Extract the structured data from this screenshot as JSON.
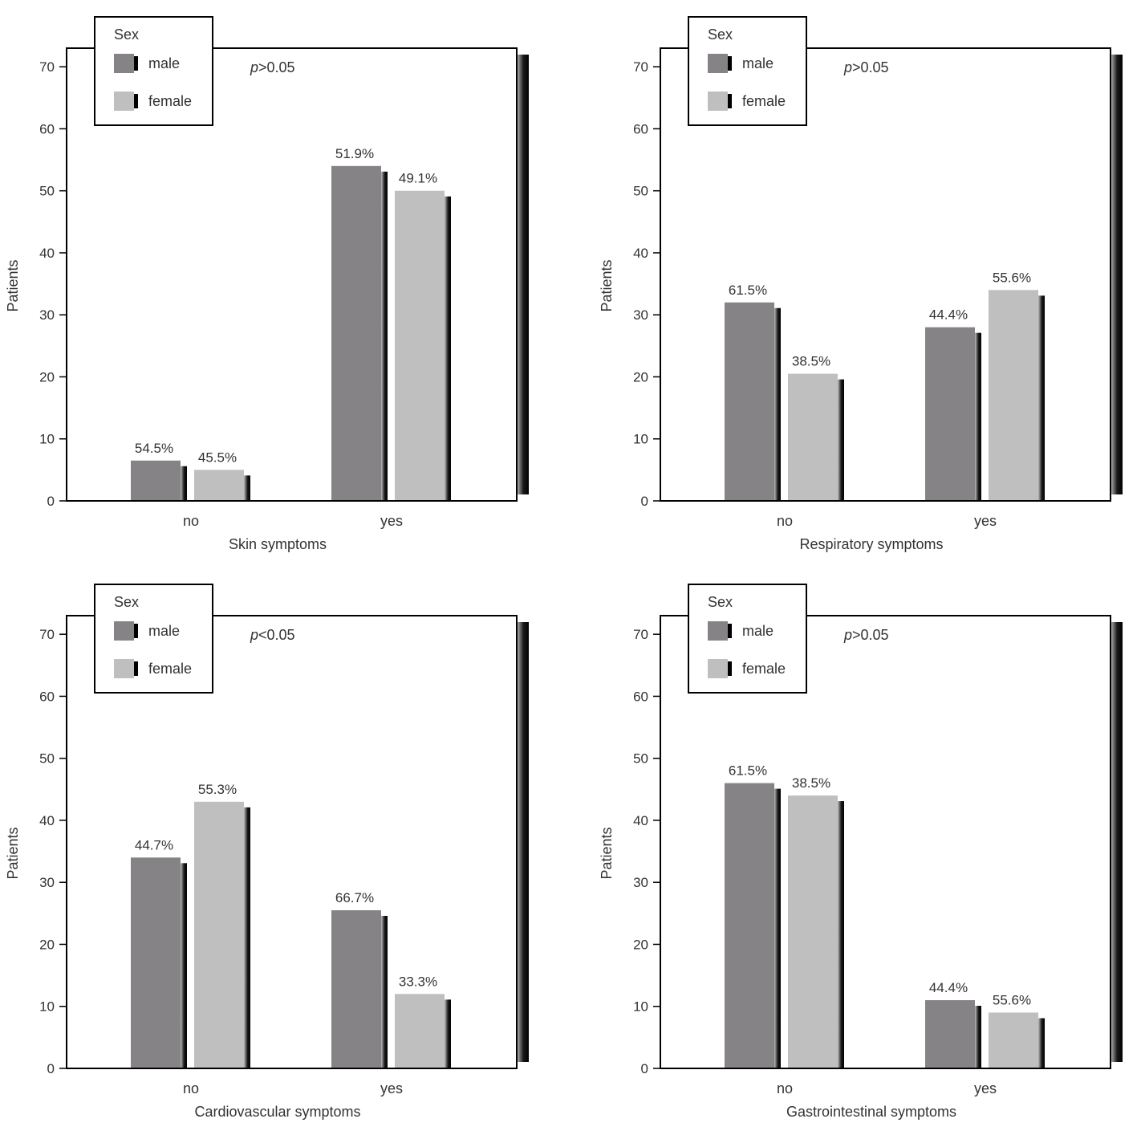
{
  "chart_data": [
    {
      "type": "bar",
      "categories": [
        "no",
        "yes"
      ],
      "series": [
        {
          "name": "male",
          "values": [
            6.5,
            54
          ],
          "labels": [
            "54.5%",
            "51.9%"
          ]
        },
        {
          "name": "female",
          "values": [
            5,
            50
          ],
          "labels": [
            "45.5%",
            "49.1%"
          ]
        }
      ],
      "xlabel": "Skin symptoms",
      "ylabel": "Patients",
      "yticks": [
        "0",
        "10",
        "20",
        "30",
        "40",
        "50",
        "60",
        "70"
      ],
      "ylim": [
        0,
        73
      ],
      "annotation": {
        "p": "p",
        "rest": ">0.05"
      },
      "legend": {
        "title": "Sex",
        "position": "top-left",
        "entries": [
          "male",
          "female"
        ]
      }
    },
    {
      "type": "bar",
      "categories": [
        "no",
        "yes"
      ],
      "series": [
        {
          "name": "male",
          "values": [
            32,
            28
          ],
          "labels": [
            "61.5%",
            "44.4%"
          ]
        },
        {
          "name": "female",
          "values": [
            20.5,
            34
          ],
          "labels": [
            "38.5%",
            "55.6%"
          ]
        }
      ],
      "xlabel": "Respiratory symptoms",
      "ylabel": "Patients",
      "yticks": [
        "0",
        "10",
        "20",
        "30",
        "40",
        "50",
        "60",
        "70"
      ],
      "ylim": [
        0,
        73
      ],
      "annotation": {
        "p": "p",
        "rest": ">0.05"
      },
      "legend": {
        "title": "Sex",
        "position": "top-left",
        "entries": [
          "male",
          "female"
        ]
      }
    },
    {
      "type": "bar",
      "categories": [
        "no",
        "yes"
      ],
      "series": [
        {
          "name": "male",
          "values": [
            34,
            25.5
          ],
          "labels": [
            "44.7%",
            "66.7%"
          ]
        },
        {
          "name": "female",
          "values": [
            43,
            12
          ],
          "labels": [
            "55.3%",
            "33.3%"
          ]
        }
      ],
      "xlabel": "Cardiovascular symptoms",
      "ylabel": "Patients",
      "yticks": [
        "0",
        "10",
        "20",
        "30",
        "40",
        "50",
        "60",
        "70"
      ],
      "ylim": [
        0,
        73
      ],
      "annotation": {
        "p": "p",
        "rest": "<0.05"
      },
      "legend": {
        "title": "Sex",
        "position": "top-left",
        "entries": [
          "male",
          "female"
        ]
      }
    },
    {
      "type": "bar",
      "categories": [
        "no",
        "yes"
      ],
      "series": [
        {
          "name": "male",
          "values": [
            46,
            11
          ],
          "labels": [
            "61.5%",
            "44.4%"
          ]
        },
        {
          "name": "female",
          "values": [
            44,
            9
          ],
          "labels": [
            "38.5%",
            "55.6%"
          ]
        }
      ],
      "xlabel": "Gastrointestinal symptoms",
      "ylabel": "Patients",
      "yticks": [
        "0",
        "10",
        "20",
        "30",
        "40",
        "50",
        "60",
        "70"
      ],
      "ylim": [
        0,
        73
      ],
      "annotation": {
        "p": "p",
        "rest": ">0.05"
      },
      "legend": {
        "title": "Sex",
        "position": "top-left",
        "entries": [
          "male",
          "female"
        ]
      }
    }
  ],
  "colors": {
    "male": "#858386",
    "female": "#bfbfbf",
    "shadow": "#000000",
    "frame": "#000000"
  }
}
